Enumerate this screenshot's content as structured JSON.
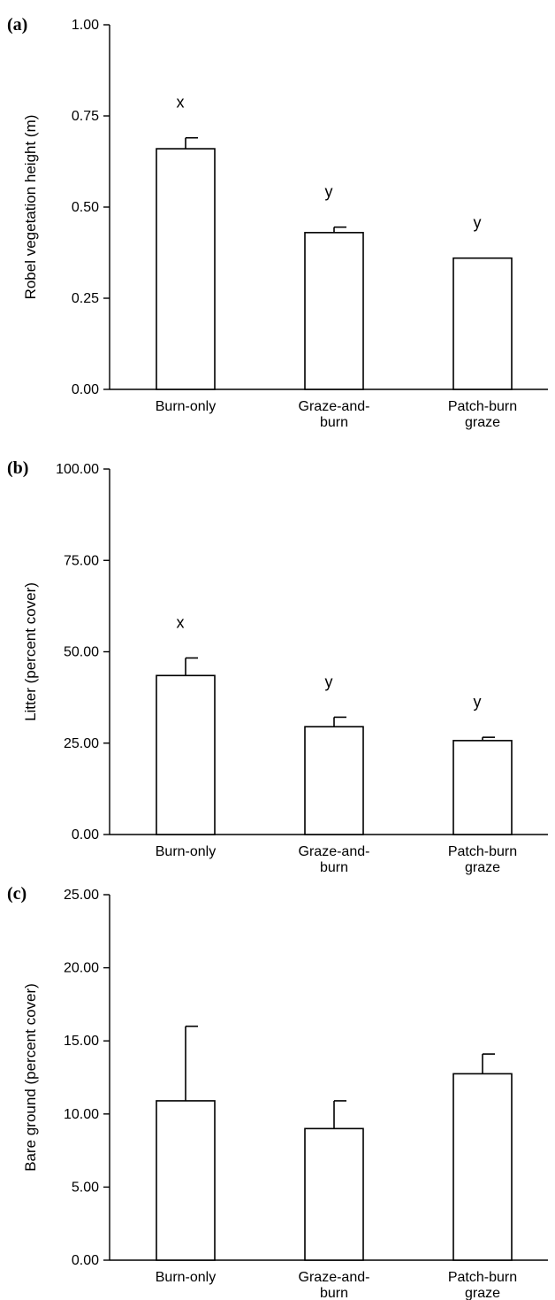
{
  "chart_data": [
    {
      "panel_label": "(a)",
      "type": "bar",
      "categories": [
        [
          "Burn-only"
        ],
        [
          "Graze-and-",
          "burn"
        ],
        [
          "Patch-burn",
          "graze"
        ]
      ],
      "values": [
        0.66,
        0.43,
        0.36
      ],
      "errors": [
        0.03,
        0.015,
        0
      ],
      "significance": [
        "x",
        "y",
        "y"
      ],
      "ylabel": "Robel vegetation height (m)",
      "ylim": [
        0,
        1.0
      ],
      "yticks": [
        "0.00",
        "0.25",
        "0.50",
        "0.75",
        "1.00"
      ]
    },
    {
      "panel_label": "(b)",
      "type": "bar",
      "categories": [
        [
          "Burn-only"
        ],
        [
          "Graze-and-",
          "burn"
        ],
        [
          "Patch-burn",
          "graze"
        ]
      ],
      "values": [
        43.5,
        29.5,
        25.7
      ],
      "errors": [
        4.8,
        2.6,
        0.9
      ],
      "significance": [
        "x",
        "y",
        "y"
      ],
      "ylabel": "Litter  (percent cover)",
      "ylim": [
        0,
        100
      ],
      "yticks": [
        "0.00",
        "25.00",
        "50.00",
        "75.00",
        "100.00"
      ]
    },
    {
      "panel_label": "(c)",
      "type": "bar",
      "categories": [
        [
          "Burn-only"
        ],
        [
          "Graze-and-",
          "burn"
        ],
        [
          "Patch-burn",
          "graze"
        ]
      ],
      "values": [
        10.9,
        9.0,
        12.75
      ],
      "errors": [
        5.1,
        1.9,
        1.35
      ],
      "significance": [],
      "ylabel": "Bare ground (percent cover)",
      "ylim": [
        0,
        25
      ],
      "yticks": [
        "0.00",
        "5.00",
        "10.00",
        "15.00",
        "20.00",
        "25.00"
      ]
    }
  ]
}
